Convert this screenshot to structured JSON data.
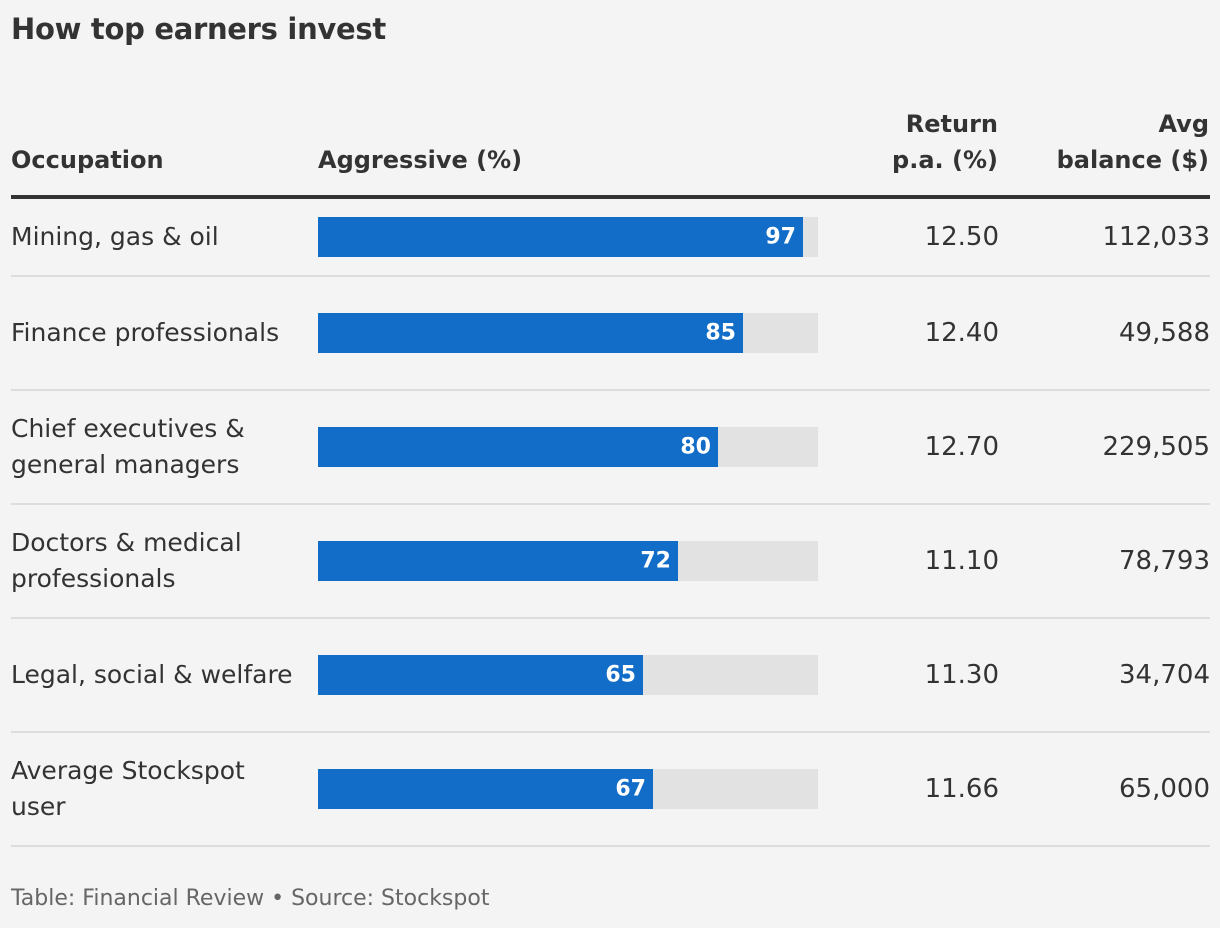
{
  "title": "How top earners invest",
  "headers": {
    "occupation": "Occupation",
    "aggressive": "Aggressive (%)",
    "return_line1": "Return",
    "return_line2": "p.a. (%)",
    "balance_line1": "Avg",
    "balance_line2": "balance ($)"
  },
  "footer": "Table: Financial Review • Source: Stockspot",
  "colors": {
    "bar": "#126dc8",
    "track": "#e2e2e2",
    "background": "#f4f4f4"
  },
  "chart_data": {
    "type": "table",
    "title": "How top earners invest",
    "columns": [
      "Occupation",
      "Aggressive (%)",
      "Return p.a. (%)",
      "Avg balance ($)"
    ],
    "bar_max": 100,
    "rows": [
      {
        "occupation": "Mining, gas & oil",
        "aggressive": 97,
        "return": "12.50",
        "balance": "112,033"
      },
      {
        "occupation": "Finance professionals",
        "aggressive": 85,
        "return": "12.40",
        "balance": "49,588"
      },
      {
        "occupation": "Chief executives & general managers",
        "aggressive": 80,
        "return": "12.70",
        "balance": "229,505"
      },
      {
        "occupation": "Doctors & medical professionals",
        "aggressive": 72,
        "return": "11.10",
        "balance": "78,793"
      },
      {
        "occupation": "Legal, social & welfare",
        "aggressive": 65,
        "return": "11.30",
        "balance": "34,704"
      },
      {
        "occupation": "Average Stockspot user",
        "aggressive": 67,
        "return": "11.66",
        "balance": "65,000"
      }
    ]
  }
}
